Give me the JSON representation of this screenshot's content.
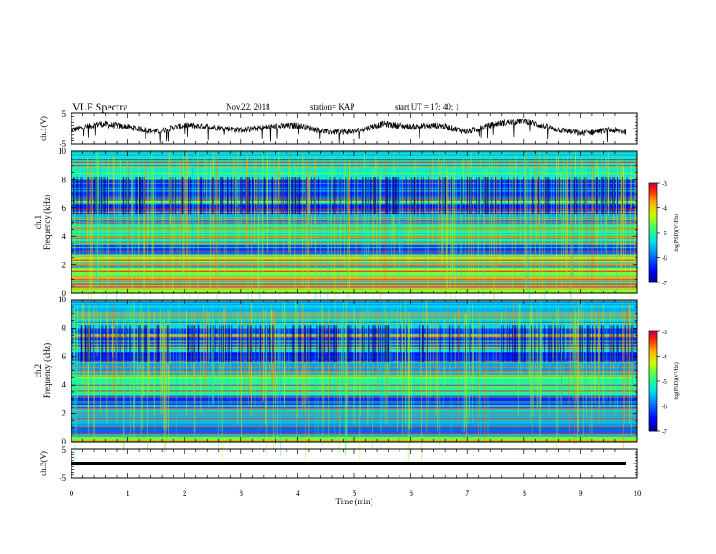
{
  "header": {
    "title": "VLF Spectra",
    "date": "Nov.22, 2018",
    "station": "station= KAP",
    "start_time": "start UT =   17: 40: 1"
  },
  "chart_data": [
    {
      "type": "line",
      "ylabel": "ch.1(V)",
      "yticks": [
        "5",
        "-5"
      ],
      "ylim": [
        -5,
        5
      ],
      "xlim": [
        0,
        10
      ],
      "series": [
        {
          "values_desc": "noisy waveform",
          "x": [
            0,
            0.5,
            1,
            1.5,
            2,
            2.5,
            3,
            3.5,
            4,
            4.5,
            5,
            5.5,
            6,
            6.5,
            7,
            7.5,
            8,
            8.5,
            9,
            9.5,
            9.8
          ],
          "y": [
            -0.5,
            1.5,
            0.5,
            -1,
            1,
            0.5,
            -0.5,
            0.5,
            1,
            -1,
            -1,
            1.5,
            0.5,
            1,
            -1,
            1.5,
            2.5,
            0,
            -1.5,
            -0.5,
            -1
          ]
        }
      ]
    },
    {
      "type": "heatmap",
      "ylabel": "ch.1",
      "ylabel2": "Frequency (kHz)",
      "yticks": [
        "0",
        "2",
        "4",
        "6",
        "8",
        "10"
      ],
      "ylim": [
        0,
        10
      ],
      "xlim": [
        0,
        10
      ],
      "colorbar": {
        "label": "log(PSD)(V²/Hz)",
        "ticks": [
          "-3",
          "-4",
          "-5",
          "-6",
          "-7"
        ],
        "range": [
          -7,
          -3
        ]
      },
      "bands_khz": [
        {
          "f0": 0,
          "f1": 0.3,
          "level": -4.5
        },
        {
          "f0": 0.3,
          "f1": 1.2,
          "level": -3.8
        },
        {
          "f0": 1.2,
          "f1": 1.9,
          "level": -4.6
        },
        {
          "f0": 1.9,
          "f1": 2.7,
          "level": -4.2
        },
        {
          "f0": 2.7,
          "f1": 3.4,
          "level": -6.2
        },
        {
          "f0": 3.4,
          "f1": 4.8,
          "level": -5.0
        },
        {
          "f0": 4.8,
          "f1": 5.6,
          "level": -5.6
        },
        {
          "f0": 5.6,
          "f1": 6.3,
          "level": -6.4
        },
        {
          "f0": 6.3,
          "f1": 6.7,
          "level": -4.8
        },
        {
          "f0": 6.7,
          "f1": 8.0,
          "level": -6.3
        },
        {
          "f0": 8.0,
          "f1": 10.0,
          "level": -5.2
        }
      ]
    },
    {
      "type": "heatmap",
      "ylabel": "ch.2",
      "ylabel2": "Frequency (kHz)",
      "yticks": [
        "0",
        "2",
        "4",
        "6",
        "8",
        "10"
      ],
      "ylim": [
        0,
        10
      ],
      "xlim": [
        0,
        10
      ],
      "colorbar": {
        "label": "log(PSD)(V²/Hz)",
        "ticks": [
          "-3",
          "-4",
          "-5",
          "-6",
          "-7"
        ],
        "range": [
          -7,
          -3
        ]
      },
      "bands_khz": [
        {
          "f0": 0,
          "f1": 0.4,
          "level": -4.5
        },
        {
          "f0": 0.4,
          "f1": 1.3,
          "level": -6.0
        },
        {
          "f0": 1.3,
          "f1": 2.6,
          "level": -5.5
        },
        {
          "f0": 2.6,
          "f1": 3.3,
          "level": -6.3
        },
        {
          "f0": 3.3,
          "f1": 4.8,
          "level": -5.0
        },
        {
          "f0": 4.8,
          "f1": 5.6,
          "level": -5.7
        },
        {
          "f0": 5.6,
          "f1": 6.3,
          "level": -6.4
        },
        {
          "f0": 6.3,
          "f1": 6.7,
          "level": -5.2
        },
        {
          "f0": 6.7,
          "f1": 8.0,
          "level": -6.3
        },
        {
          "f0": 8.0,
          "f1": 10.0,
          "level": -5.4
        }
      ]
    },
    {
      "type": "line",
      "ylabel": "ch.3(V)",
      "yticks": [
        "5",
        "-5"
      ],
      "ylim": [
        -5,
        5
      ],
      "xlim": [
        0,
        10
      ],
      "series": [
        {
          "x": [
            0,
            9.8
          ],
          "y": [
            0,
            0
          ]
        }
      ]
    }
  ],
  "xaxis": {
    "label": "Time (min)",
    "ticks": [
      "0",
      "1",
      "2",
      "3",
      "4",
      "5",
      "6",
      "7",
      "8",
      "9",
      "10"
    ]
  }
}
